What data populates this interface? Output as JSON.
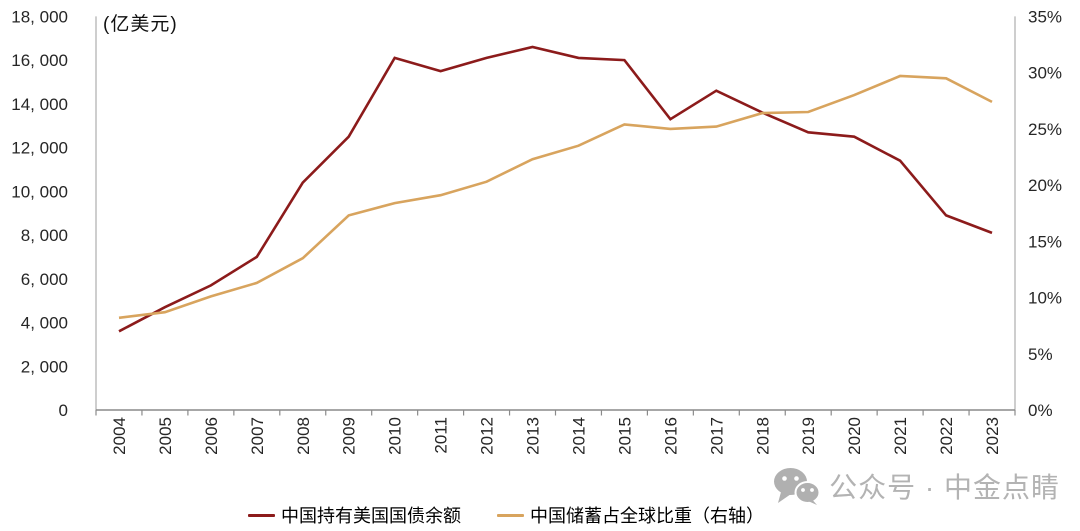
{
  "chart_data": {
    "type": "line",
    "title": "",
    "unit_label": "(亿美元)",
    "grid": false,
    "legend_position": "bottom",
    "categories": [
      "2004",
      "2005",
      "2006",
      "2007",
      "2008",
      "2009",
      "2010",
      "2011",
      "2012",
      "2013",
      "2014",
      "2015",
      "2016",
      "2017",
      "2018",
      "2019",
      "2020",
      "2021",
      "2022",
      "2023"
    ],
    "series": [
      {
        "name": "中国持有美国国债余额",
        "axis": "left",
        "color": "#8C1B1B",
        "values": [
          3600,
          4700,
          5700,
          7000,
          10400,
          12500,
          16100,
          15500,
          16100,
          16600,
          16100,
          16000,
          13300,
          14600,
          13600,
          12700,
          12500,
          11400,
          8900,
          8100
        ]
      },
      {
        "name": "中国储蓄占全球比重（右轴）",
        "axis": "right",
        "color": "#D8A45E",
        "values": [
          8.2,
          8.7,
          10.1,
          11.3,
          13.5,
          17.3,
          18.4,
          19.1,
          20.3,
          22.3,
          23.5,
          25.4,
          25.0,
          25.2,
          26.4,
          26.5,
          28.0,
          29.7,
          29.5,
          27.4
        ]
      }
    ],
    "left_axis": {
      "min": 0,
      "max": 18000,
      "ticks": [
        {
          "label": "0",
          "value": 0
        },
        {
          "label": "2, 000",
          "value": 2000
        },
        {
          "label": "4, 000",
          "value": 4000
        },
        {
          "label": "6, 000",
          "value": 6000
        },
        {
          "label": "8, 000",
          "value": 8000
        },
        {
          "label": "10, 000",
          "value": 10000
        },
        {
          "label": "12, 000",
          "value": 12000
        },
        {
          "label": "14, 000",
          "value": 14000
        },
        {
          "label": "16, 000",
          "value": 16000
        },
        {
          "label": "18, 000",
          "value": 18000
        }
      ]
    },
    "right_axis": {
      "min": 0,
      "max": 35,
      "ticks": [
        {
          "label": "0%",
          "value": 0
        },
        {
          "label": "5%",
          "value": 5
        },
        {
          "label": "10%",
          "value": 10
        },
        {
          "label": "15%",
          "value": 15
        },
        {
          "label": "20%",
          "value": 20
        },
        {
          "label": "25%",
          "value": 25
        },
        {
          "label": "30%",
          "value": 30
        },
        {
          "label": "35%",
          "value": 35
        }
      ]
    }
  },
  "watermark": {
    "icon": "wechat-icon",
    "text": "公众号 · 中金点睛"
  }
}
